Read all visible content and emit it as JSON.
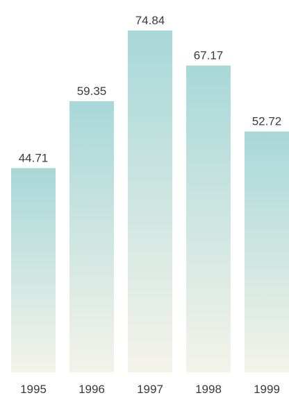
{
  "chart_data": {
    "type": "bar",
    "categories": [
      "1995",
      "1996",
      "1997",
      "1998",
      "1999"
    ],
    "values": [
      44.71,
      59.35,
      74.84,
      67.17,
      52.72
    ],
    "value_labels": [
      "44.71",
      "59.35",
      "74.84",
      "67.17",
      "52.72"
    ],
    "title": "",
    "xlabel": "",
    "ylabel": "",
    "ylim": [
      0,
      77
    ],
    "grid": false,
    "legend": "none",
    "colors": {
      "bar_top": "#a8d8d8",
      "bar_bottom": "#f4f3ea",
      "text": "#3a3a3a"
    }
  }
}
